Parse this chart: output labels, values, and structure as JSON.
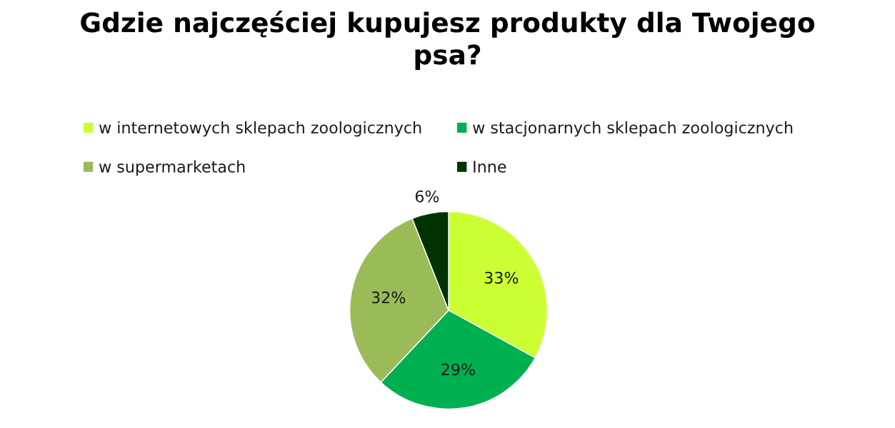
{
  "chart_data": {
    "type": "pie",
    "title": "Gdzie najczęściej kupujesz produkty dla Twojego psa?",
    "categories": [
      "w internetowych sklepach zoologicznych",
      "w stacjonarnych sklepach zoologicznych",
      "w supermarketach",
      "Inne"
    ],
    "values": [
      33,
      29,
      32,
      6
    ],
    "colors": [
      "#ccff33",
      "#00b050",
      "#9bbb59",
      "#003300"
    ],
    "value_labels": [
      "33%",
      "29%",
      "32%",
      "6%"
    ],
    "legend": "top"
  }
}
